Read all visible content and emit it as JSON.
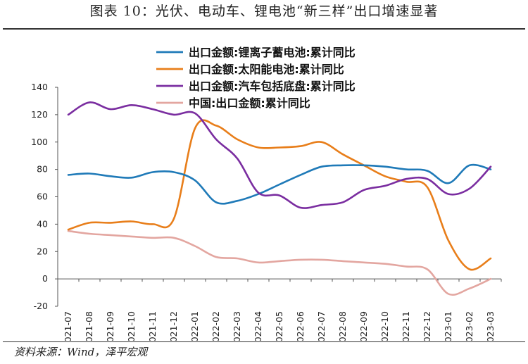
{
  "title": "图表 10：光伏、电动车、锂电池“新三样”出口增速显著",
  "source": "资料来源：Wind，泽平宏观",
  "chart_data": {
    "type": "line",
    "x": [
      "2021-07",
      "2021-08",
      "2021-09",
      "2021-10",
      "2021-11",
      "2021-12",
      "2022-01",
      "2022-02",
      "2022-03",
      "2022-04",
      "2022-05",
      "2022-06",
      "2022-07",
      "2022-08",
      "2022-09",
      "2022-10",
      "2022-11",
      "2022-12",
      "2023-01",
      "2023-02",
      "2023-03"
    ],
    "ylim": [
      -20,
      140
    ],
    "yticks": [
      -20,
      0,
      20,
      40,
      60,
      80,
      100,
      120,
      140
    ],
    "grid": false,
    "legend_position": "top",
    "series": [
      {
        "name": "出口金额:锂离子蓄电池:累计同比",
        "color": "#1f7ab8",
        "values": [
          76,
          77,
          75,
          74,
          78,
          78,
          72,
          56,
          57,
          62,
          69,
          76,
          82,
          83,
          83,
          82,
          80,
          79,
          70,
          83,
          80
        ]
      },
      {
        "name": "出口金额:太阳能电池:累计同比",
        "color": "#e87e1a",
        "values": [
          36,
          41,
          41,
          42,
          40,
          44,
          110,
          112,
          102,
          96,
          96,
          97,
          100,
          91,
          83,
          75,
          71,
          67,
          28,
          7,
          15
        ]
      },
      {
        "name": "出口金额:汽车包括底盘:累计同比",
        "color": "#7a2da0",
        "values": [
          120,
          129,
          124,
          127,
          124,
          120,
          121,
          102,
          88,
          63,
          61,
          52,
          54,
          56,
          65,
          68,
          73,
          73,
          62,
          66,
          82
        ]
      },
      {
        "name": "中国:出口金额:累计同比",
        "color": "#e3a6a0",
        "values": [
          35,
          33,
          32,
          31,
          30,
          30,
          24,
          16,
          15,
          12,
          13,
          14,
          14,
          13,
          12,
          11,
          9,
          7,
          -11,
          -7,
          0
        ]
      }
    ]
  }
}
